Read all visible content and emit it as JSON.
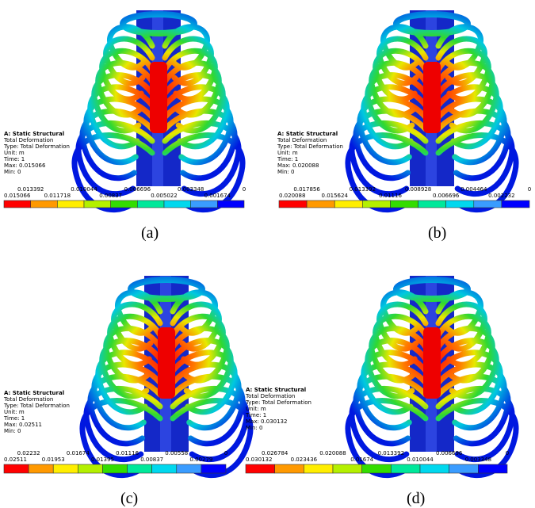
{
  "panels": [
    {
      "info": [
        "A: Static Structural",
        "Total Deformation",
        "Type: Total Deformation",
        "Unit: m",
        "Time: 1",
        "Max: 0.015066",
        "Min: 0"
      ],
      "legend": [
        "0.015066",
        "0.013392",
        "0.011718",
        "0.010044",
        "0.00837",
        "0.006696",
        "0.005022",
        "0.003348",
        "0.001674",
        "0"
      ],
      "caption": "(a)"
    },
    {
      "info": [
        "A: Static Structural",
        "Total Deformation",
        "Type: Total Deformation",
        "Unit: m",
        "Time: 1",
        "Max: 0.020088",
        "Min: 0"
      ],
      "legend": [
        "0.020088",
        "0.017856",
        "0.015624",
        "0.013392",
        "0.01116",
        "0.008928",
        "0.006696",
        "0.004464",
        "0.002232",
        "0"
      ],
      "caption": "(b)"
    },
    {
      "info": [
        "A: Static Structural",
        "Total Deformation",
        "Type: Total Deformation",
        "Unit: m",
        "Time: 1",
        "Max: 0.02511",
        "Min: 0"
      ],
      "legend": [
        "0.02511",
        "0.02232",
        "0.01953",
        "0.01674",
        "0.01395",
        "0.01116",
        "0.00837",
        "0.00558",
        "0.00279",
        "0"
      ],
      "caption": "(c)"
    },
    {
      "info": [
        "A: Static Structural",
        "Total Deformation",
        "Type: Total Deformation",
        "Unit: m",
        "Time: 1",
        "Max: 0.030132",
        "Min: 0"
      ],
      "legend": [
        "0.030132",
        "0.026784",
        "0.023436",
        "0.020088",
        "0.01674",
        "0.013392",
        "0.010044",
        "0.006696",
        "0.003348",
        "0"
      ],
      "caption": "(d)"
    }
  ]
}
